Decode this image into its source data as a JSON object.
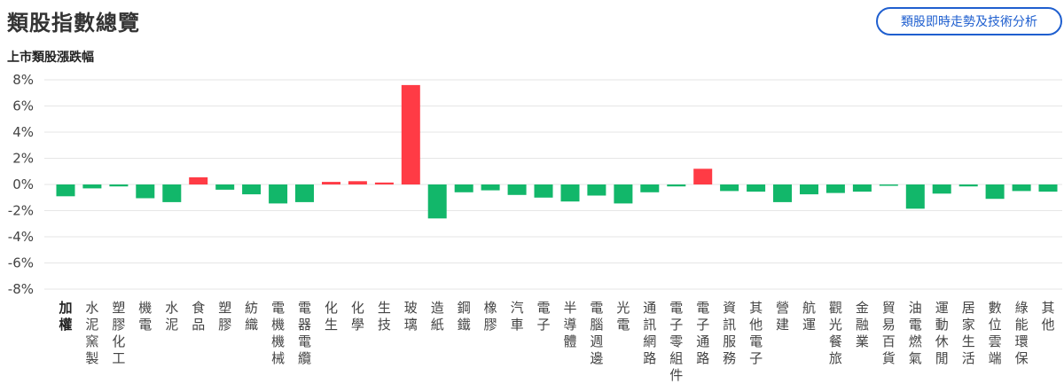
{
  "header": {
    "title": "類股指數總覽",
    "action_button": "類股即時走勢及技術分析"
  },
  "colors": {
    "up": "#ff3b45",
    "down": "#12b76a",
    "grid": "#e6e6e6",
    "accent": "#1f5fcf"
  },
  "chart_data": {
    "type": "bar",
    "title": "上市類股漲跌幅",
    "ylim": [
      -8,
      8
    ],
    "yticks": [
      8,
      6,
      4,
      2,
      0,
      -2,
      -4,
      -6,
      -8
    ],
    "ytick_labels": [
      "8%",
      "6%",
      "4%",
      "2%",
      "0%",
      "-2%",
      "-4%",
      "-6%",
      "-8%"
    ],
    "grid": true,
    "categories": [
      "加權",
      "水泥窯製",
      "塑膠化工",
      "機電",
      "水泥",
      "食品",
      "塑膠",
      "紡織",
      "電機機械",
      "電器電纜",
      "化生",
      "化學",
      "生技",
      "玻璃",
      "造紙",
      "鋼鐵",
      "橡膠",
      "汽車",
      "電子",
      "半導體",
      "電腦週邊",
      "光電",
      "通訊網路",
      "電子零組件",
      "電子通路",
      "資訊服務",
      "其他電子",
      "營建",
      "航運",
      "觀光餐旅",
      "金融業",
      "貿易百貨",
      "油電燃氣",
      "運動休閒",
      "居家生活",
      "數位雲端",
      "綠能環保",
      "其他"
    ],
    "values": [
      -0.9,
      -0.3,
      -0.15,
      -1.05,
      -1.35,
      0.55,
      -0.4,
      -0.75,
      -1.45,
      -1.35,
      0.2,
      0.25,
      0.15,
      7.6,
      -2.6,
      -0.6,
      -0.45,
      -0.8,
      -1.0,
      -1.3,
      -0.85,
      -1.45,
      -0.6,
      -0.15,
      1.2,
      -0.5,
      -0.55,
      -1.35,
      -0.75,
      -0.65,
      -0.55,
      -0.1,
      -1.85,
      -0.7,
      -0.15,
      -1.1,
      -0.5,
      -0.55
    ]
  }
}
